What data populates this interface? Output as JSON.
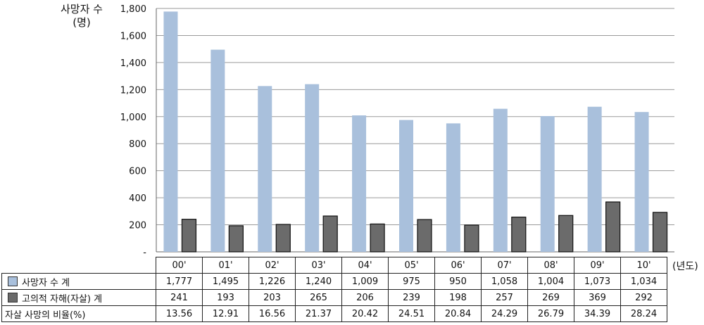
{
  "chart_data": {
    "type": "bar",
    "ylabel": "사망자 수\n(명)",
    "xunit": "(년도)",
    "categories": [
      "00'",
      "01'",
      "02'",
      "03'",
      "04'",
      "05'",
      "06'",
      "07'",
      "08'",
      "09'",
      "10'"
    ],
    "ylim": [
      0,
      1800
    ],
    "yticks": [
      "-",
      "200",
      "400",
      "600",
      "800",
      "1,000",
      "1,200",
      "1,400",
      "1,600",
      "1,800"
    ],
    "grid": true,
    "series": [
      {
        "name": "사망자 수 계",
        "color": "#a9c0dc",
        "values": [
          1777,
          1495,
          1226,
          1240,
          1009,
          975,
          950,
          1058,
          1004,
          1073,
          1034
        ],
        "labels": [
          "1,777",
          "1,495",
          "1,226",
          "1,240",
          "1,009",
          "975",
          "950",
          "1,058",
          "1,004",
          "1,073",
          "1,034"
        ]
      },
      {
        "name": "고의적 자해(자살) 계",
        "color": "#6b6b6b",
        "values": [
          241,
          193,
          203,
          265,
          206,
          239,
          198,
          257,
          269,
          369,
          292
        ],
        "labels": [
          "241",
          "193",
          "203",
          "265",
          "206",
          "239",
          "198",
          "257",
          "269",
          "369",
          "292"
        ]
      }
    ],
    "table_rows": [
      {
        "name": "자살 사망의 비율(%)",
        "labels": [
          "13.56",
          "12.91",
          "16.56",
          "21.37",
          "20.42",
          "24.51",
          "20.84",
          "24.29",
          "26.79",
          "34.39",
          "28.24"
        ]
      }
    ]
  }
}
